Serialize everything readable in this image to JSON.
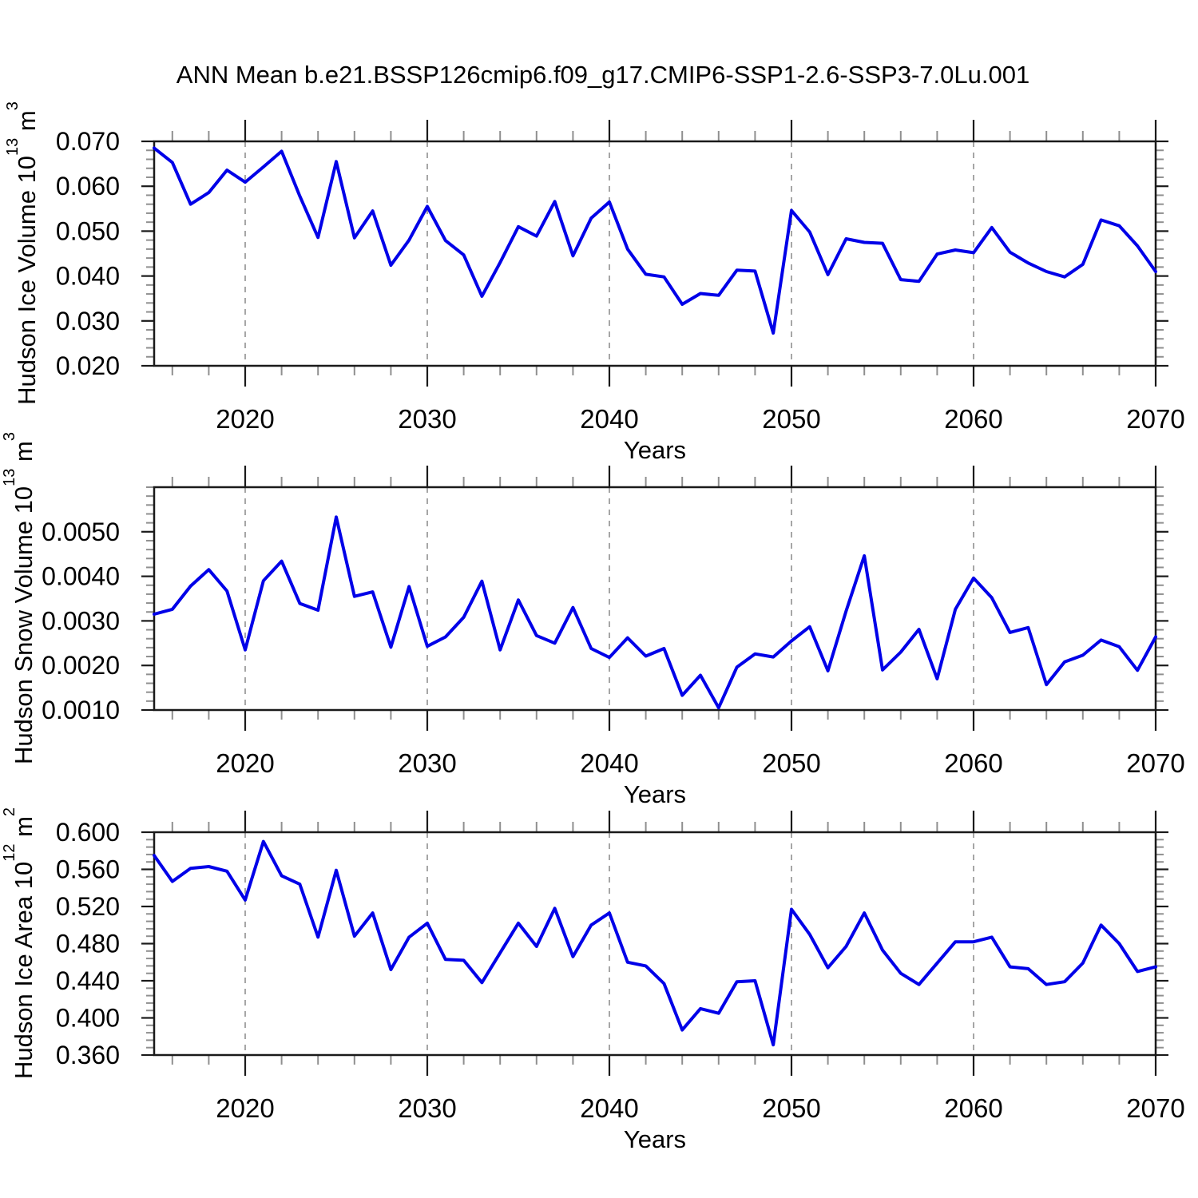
{
  "chart_data": {
    "type": "line",
    "title": "ANN Mean b.e21.BSSP126cmip6.f09_g17.CMIP6-SSP1-2.6-SSP3-7.0Lu.001",
    "line_color": "#0000e8",
    "grid_color": "#a6a6a6",
    "frame_color": "#1a1a1a",
    "minor_tick_color": "#8f8f8f",
    "x_range": [
      2015,
      2070
    ],
    "x_ticks": [
      2020,
      2030,
      2040,
      2050,
      2060,
      2070
    ],
    "x_minor_step": 2,
    "grid_x_dashed": [
      2020,
      2030,
      2040,
      2050,
      2060
    ],
    "x": [
      2015,
      2016,
      2017,
      2018,
      2019,
      2020,
      2021,
      2022,
      2023,
      2024,
      2025,
      2026,
      2027,
      2028,
      2029,
      2030,
      2031,
      2032,
      2033,
      2034,
      2035,
      2036,
      2037,
      2038,
      2039,
      2040,
      2041,
      2042,
      2043,
      2044,
      2045,
      2046,
      2047,
      2048,
      2049,
      2050,
      2051,
      2052,
      2053,
      2054,
      2055,
      2056,
      2057,
      2058,
      2059,
      2060,
      2061,
      2062,
      2063,
      2064,
      2065,
      2066,
      2067,
      2068,
      2069,
      2070
    ],
    "panels": [
      {
        "id": "hudson-ice-volume",
        "y_label_parts": [
          "Hudson Ice Volume 10",
          "13",
          " m",
          "3"
        ],
        "x_axis_label": "Years",
        "y_range": [
          0.02,
          0.07
        ],
        "y_ticks": [
          0.02,
          0.03,
          0.04,
          0.05,
          0.06,
          0.07
        ],
        "y_tick_labels": [
          "0.020",
          "0.030",
          "0.040",
          "0.050",
          "0.060",
          "0.070"
        ],
        "y_minor_step": 0.002,
        "values": [
          0.0685,
          0.0653,
          0.056,
          0.0586,
          0.0636,
          0.0609,
          0.0643,
          0.0678,
          0.0578,
          0.0486,
          0.0655,
          0.0485,
          0.0545,
          0.0424,
          0.048,
          0.0555,
          0.0479,
          0.0447,
          0.0355,
          0.043,
          0.051,
          0.0489,
          0.0566,
          0.0445,
          0.0529,
          0.0565,
          0.046,
          0.0404,
          0.0398,
          0.0337,
          0.0361,
          0.0357,
          0.0413,
          0.0411,
          0.0273,
          0.0546,
          0.0498,
          0.0403,
          0.0483,
          0.0475,
          0.0473,
          0.0392,
          0.0388,
          0.0449,
          0.0458,
          0.0452,
          0.0508,
          0.0453,
          0.0429,
          0.041,
          0.0398,
          0.0426,
          0.0525,
          0.0512,
          0.0467,
          0.041
        ]
      },
      {
        "id": "hudson-snow-volume",
        "y_label_parts": [
          "Hudson Snow Volume 10",
          "13",
          " m",
          "3"
        ],
        "x_axis_label": "Years",
        "y_range": [
          0.001,
          0.006
        ],
        "y_ticks": [
          0.001,
          0.002,
          0.003,
          0.004,
          0.005
        ],
        "y_tick_labels": [
          "0.0010",
          "0.0020",
          "0.0030",
          "0.0040",
          "0.0050"
        ],
        "y_minor_step": 0.0002,
        "values": [
          0.00315,
          0.00326,
          0.00378,
          0.00415,
          0.00367,
          0.00235,
          0.0039,
          0.00434,
          0.00339,
          0.00324,
          0.00533,
          0.00355,
          0.00365,
          0.00241,
          0.00377,
          0.00243,
          0.00264,
          0.00308,
          0.00389,
          0.00235,
          0.00347,
          0.00267,
          0.0025,
          0.0033,
          0.00238,
          0.00218,
          0.00262,
          0.00221,
          0.00238,
          0.00133,
          0.00178,
          0.00105,
          0.00196,
          0.00226,
          0.00219,
          0.00255,
          0.00287,
          0.00188,
          0.00322,
          0.00446,
          0.0019,
          0.0023,
          0.00281,
          0.0017,
          0.00326,
          0.00396,
          0.00352,
          0.00274,
          0.00285,
          0.00157,
          0.00208,
          0.00223,
          0.00257,
          0.00242,
          0.00189,
          0.00264
        ]
      },
      {
        "id": "hudson-ice-area",
        "y_label_parts": [
          "Hudson Ice Area 10",
          "12",
          " m",
          "2"
        ],
        "x_axis_label": "Years",
        "y_range": [
          0.36,
          0.6
        ],
        "y_ticks": [
          0.36,
          0.4,
          0.44,
          0.48,
          0.52,
          0.56,
          0.6
        ],
        "y_tick_labels": [
          "0.360",
          "0.400",
          "0.440",
          "0.480",
          "0.520",
          "0.560",
          "0.600"
        ],
        "y_minor_step": 0.008,
        "values": [
          0.575,
          0.547,
          0.561,
          0.563,
          0.558,
          0.527,
          0.59,
          0.553,
          0.544,
          0.487,
          0.559,
          0.488,
          0.513,
          0.452,
          0.487,
          0.502,
          0.463,
          0.462,
          0.438,
          0.47,
          0.502,
          0.477,
          0.518,
          0.466,
          0.5,
          0.513,
          0.46,
          0.456,
          0.437,
          0.387,
          0.41,
          0.405,
          0.439,
          0.44,
          0.371,
          0.517,
          0.49,
          0.454,
          0.477,
          0.513,
          0.473,
          0.448,
          0.436,
          0.459,
          0.482,
          0.482,
          0.487,
          0.455,
          0.453,
          0.436,
          0.439,
          0.459,
          0.5,
          0.48,
          0.45,
          0.455
        ]
      }
    ]
  }
}
